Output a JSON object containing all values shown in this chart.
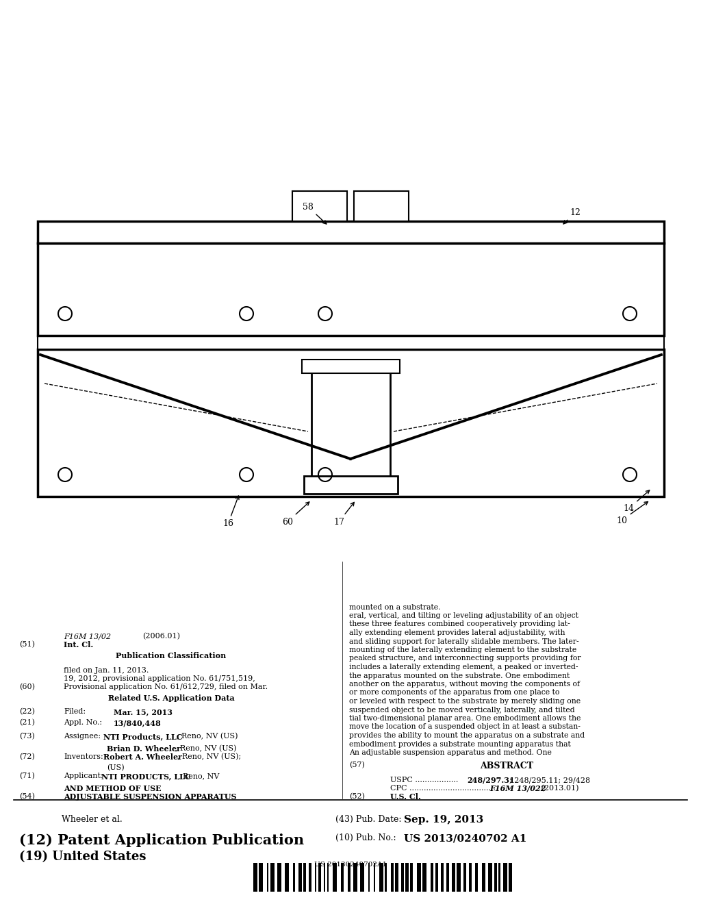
{
  "background_color": "#ffffff",
  "barcode_text": "US 20130240702A1",
  "title_19": "(19) United States",
  "title_12": "(12) Patent Application Publication",
  "pub_no_label": "(10) Pub. No.:",
  "pub_no_value": "US 2013/0240702 A1",
  "author": "Wheeler et al.",
  "pub_date_label": "(43) Pub. Date:",
  "pub_date_value": "Sep. 19, 2013",
  "abstract_lines": [
    "An adjustable suspension apparatus and method. One",
    "embodiment provides a substrate mounting apparatus that",
    "provides the ability to mount the apparatus on a substrate and",
    "move the location of a suspended object in at least a substan-",
    "tial two-dimensional planar area. One embodiment allows the",
    "suspended object to be moved vertically, laterally, and tilted",
    "or leveled with respect to the substrate by merely sliding one",
    "or more components of the apparatus from one place to",
    "another on the apparatus, without moving the components of",
    "the apparatus mounted on the substrate. One embodiment",
    "includes a laterally extending element, a peaked or inverted-",
    "peaked structure, and interconnecting supports providing for",
    "mounting of the laterally extending element to the substrate",
    "and sliding support for laterally slidable members. The later-",
    "ally extending element provides lateral adjustability, with",
    "these three features combined cooperatively providing lat-",
    "eral, vertical, and tilting or leveling adjustability of an object",
    "mounted on a substrate."
  ]
}
